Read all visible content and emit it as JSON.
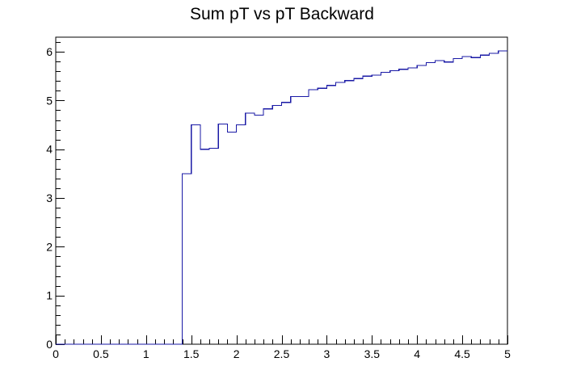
{
  "chart_data": {
    "type": "line",
    "style": "step histogram",
    "title": "Sum pT vs pT Backward",
    "xlabel": "",
    "ylabel": "",
    "xlim": [
      0,
      5
    ],
    "ylim": [
      0,
      6.3
    ],
    "grid": false,
    "legend": "none",
    "colors": {
      "line": "#1a1aa6",
      "frame": "#000000"
    },
    "x_ticks": [
      "0",
      "0.5",
      "1",
      "1.5",
      "2",
      "2.5",
      "3",
      "3.5",
      "4",
      "4.5",
      "5"
    ],
    "y_ticks": [
      "0",
      "1",
      "2",
      "3",
      "4",
      "5",
      "6"
    ],
    "bin_width": 0.1,
    "series": [
      {
        "x": [
          0.0,
          0.1,
          0.2,
          0.3,
          0.4,
          0.5,
          0.6,
          0.7,
          0.8,
          0.9,
          1.0,
          1.1,
          1.2,
          1.3,
          1.4,
          1.5,
          1.6,
          1.7,
          1.8,
          1.9,
          2.0,
          2.1,
          2.2,
          2.3,
          2.4,
          2.5,
          2.6,
          2.7,
          2.8,
          2.9,
          3.0,
          3.1,
          3.2,
          3.3,
          3.4,
          3.5,
          3.6,
          3.7,
          3.8,
          3.9,
          4.0,
          4.1,
          4.2,
          4.3,
          4.4,
          4.5,
          4.6,
          4.7,
          4.8,
          4.9
        ],
        "values": [
          0,
          0,
          0,
          0,
          0,
          0,
          0,
          0,
          0,
          0,
          0,
          0,
          0,
          0,
          3.5,
          4.5,
          4.0,
          4.02,
          4.52,
          4.35,
          4.5,
          4.74,
          4.7,
          4.83,
          4.9,
          4.96,
          5.08,
          5.08,
          5.22,
          5.25,
          5.31,
          5.37,
          5.41,
          5.45,
          5.5,
          5.52,
          5.58,
          5.61,
          5.64,
          5.67,
          5.72,
          5.78,
          5.82,
          5.79,
          5.86,
          5.9,
          5.88,
          5.93,
          5.97,
          6.02
        ]
      }
    ]
  }
}
